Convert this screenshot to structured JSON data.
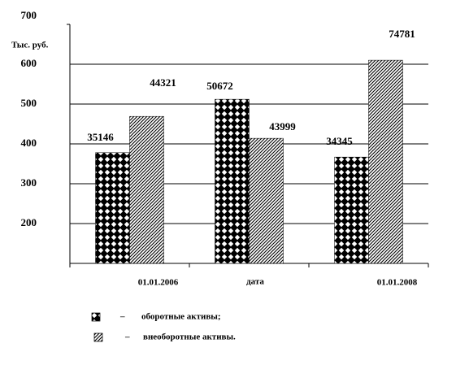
{
  "chart_data": {
    "type": "bar",
    "y_label": "Тыс. руб.",
    "x_label": "дата",
    "categories": [
      "01.01.2006",
      null,
      "01.01.2008"
    ],
    "series": [
      {
        "name": "оборотные активы;",
        "color": "#000000",
        "pattern": "diamond",
        "values": [
          378,
          512,
          367
        ]
      },
      {
        "name": "внеоборотные активы.",
        "color": "#000000",
        "pattern": "hatch",
        "values": [
          469,
          414,
          610
        ]
      }
    ],
    "annotations": [
      [
        "35146",
        "50672",
        "34345"
      ],
      [
        "44321",
        "43999",
        "74781"
      ]
    ],
    "ylim": [
      100,
      700
    ],
    "yticks": [
      200,
      300,
      400,
      500,
      600,
      700
    ],
    "grid": true,
    "legend_marker": "–"
  }
}
